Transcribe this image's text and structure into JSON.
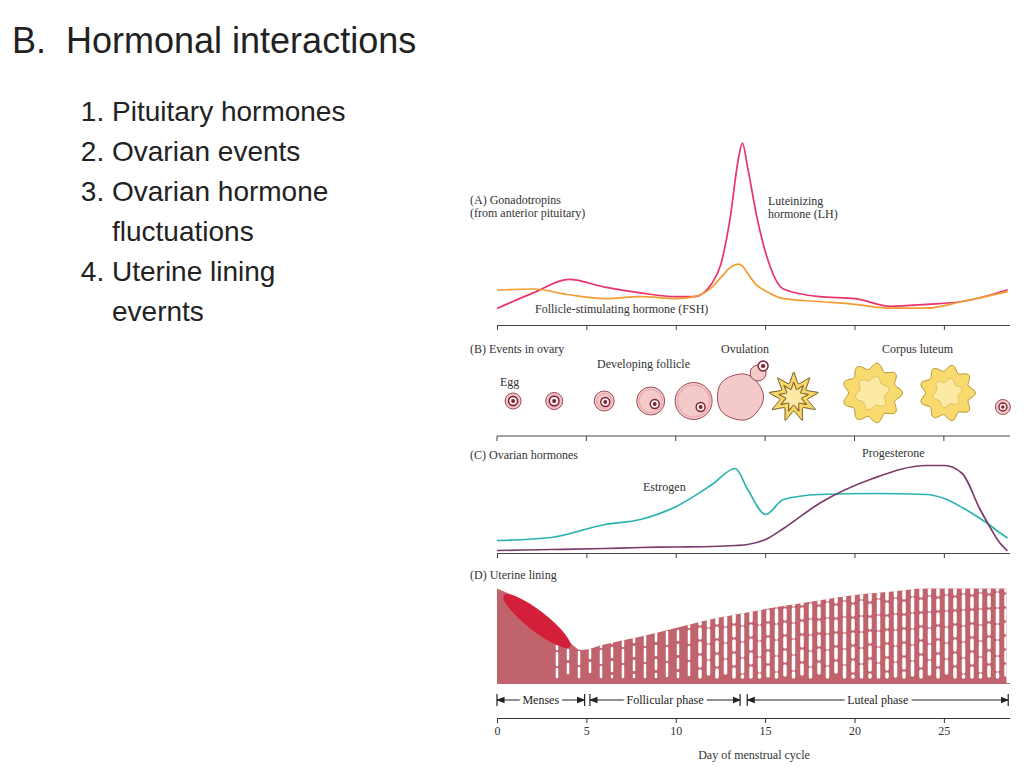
{
  "slide": {
    "title": "B.  Hormonal interactions",
    "items": [
      "Pituitary hormones",
      "Ovarian events",
      "Ovarian hormone fluctuations",
      "Uterine lining evernts"
    ]
  },
  "figure": {
    "x_label": "Day of menstrual cycle",
    "xlim": [
      0,
      28.7
    ],
    "xticks": [
      0,
      5,
      10,
      15,
      20,
      25
    ],
    "phases": [
      {
        "name": "Menses",
        "start": 0,
        "end": 4.9
      },
      {
        "name": "Follicular phase",
        "start": 5.2,
        "end": 13.6
      },
      {
        "name": "Luteal phase",
        "start": 14,
        "end": 28.6
      }
    ]
  },
  "chart_data": [
    {
      "type": "line",
      "title": [
        "(A) Gonadotropins",
        "(from anterior pituitary)"
      ],
      "ylim": [
        0,
        100
      ],
      "tick_labels": false,
      "x": [
        0,
        2,
        4,
        6,
        8,
        10,
        11,
        12,
        12.5,
        13,
        13.5,
        13.7,
        14,
        14.5,
        15,
        16,
        18,
        20,
        22,
        24,
        26,
        28.5
      ],
      "series": [
        {
          "name": "Luteinizing hormone (LH)",
          "color": "#e8336b",
          "values": [
            9,
            17,
            24,
            20,
            17,
            15,
            15,
            22,
            32,
            55,
            88,
            95,
            82,
            57,
            38,
            19,
            15,
            14,
            10,
            11,
            12.5,
            18.5
          ]
        },
        {
          "name": "Follicle-stimulating hormone (FSH)",
          "color": "#f39c33",
          "values": [
            18.5,
            19,
            16,
            14,
            15,
            14,
            15,
            20,
            25,
            30,
            32,
            31,
            27,
            21,
            18,
            14,
            12.5,
            11,
            9,
            9,
            12.5,
            17.5
          ]
        }
      ]
    },
    {
      "type": "diagram",
      "title": [
        "(B) Events in ovary"
      ],
      "labels": [
        "Egg",
        "Developing follicle",
        "Ovulation",
        "Corpus luteum"
      ]
    },
    {
      "type": "line",
      "title": [
        "(C) Ovarian hormones"
      ],
      "ylim": [
        0,
        100
      ],
      "tick_labels": false,
      "x": [
        0,
        3,
        6,
        8,
        10,
        12,
        13.3,
        14,
        15,
        16,
        18,
        21,
        24,
        25,
        26,
        27,
        27.5,
        28,
        28.5
      ],
      "series": [
        {
          "name": "Estrogen",
          "color": "#2bb3b1",
          "values": [
            13,
            16,
            29,
            34,
            47,
            69,
            85,
            64,
            39,
            54,
            59,
            60,
            59,
            55,
            46,
            35,
            29,
            22,
            16
          ]
        },
        {
          "name": "Progesterone",
          "color": "#7b3b6b",
          "values": [
            3,
            4,
            5,
            6,
            6.5,
            7,
            8,
            9,
            14,
            25,
            50,
            75,
            88,
            88,
            80,
            44,
            28,
            13,
            3
          ]
        }
      ]
    },
    {
      "type": "area",
      "title": [
        "(D) Uterine lining"
      ],
      "ylim": [
        0,
        100
      ],
      "tick_labels": false,
      "color": "#c0636d",
      "x": [
        0,
        1,
        2,
        3,
        4,
        4.7,
        6,
        8,
        10,
        12,
        14,
        16,
        18,
        20,
        22,
        24,
        26,
        28.5
      ],
      "values": [
        86,
        78,
        65,
        52,
        38,
        30,
        35,
        42,
        50,
        58,
        64,
        70,
        75,
        80,
        83,
        86,
        86,
        86
      ]
    }
  ]
}
